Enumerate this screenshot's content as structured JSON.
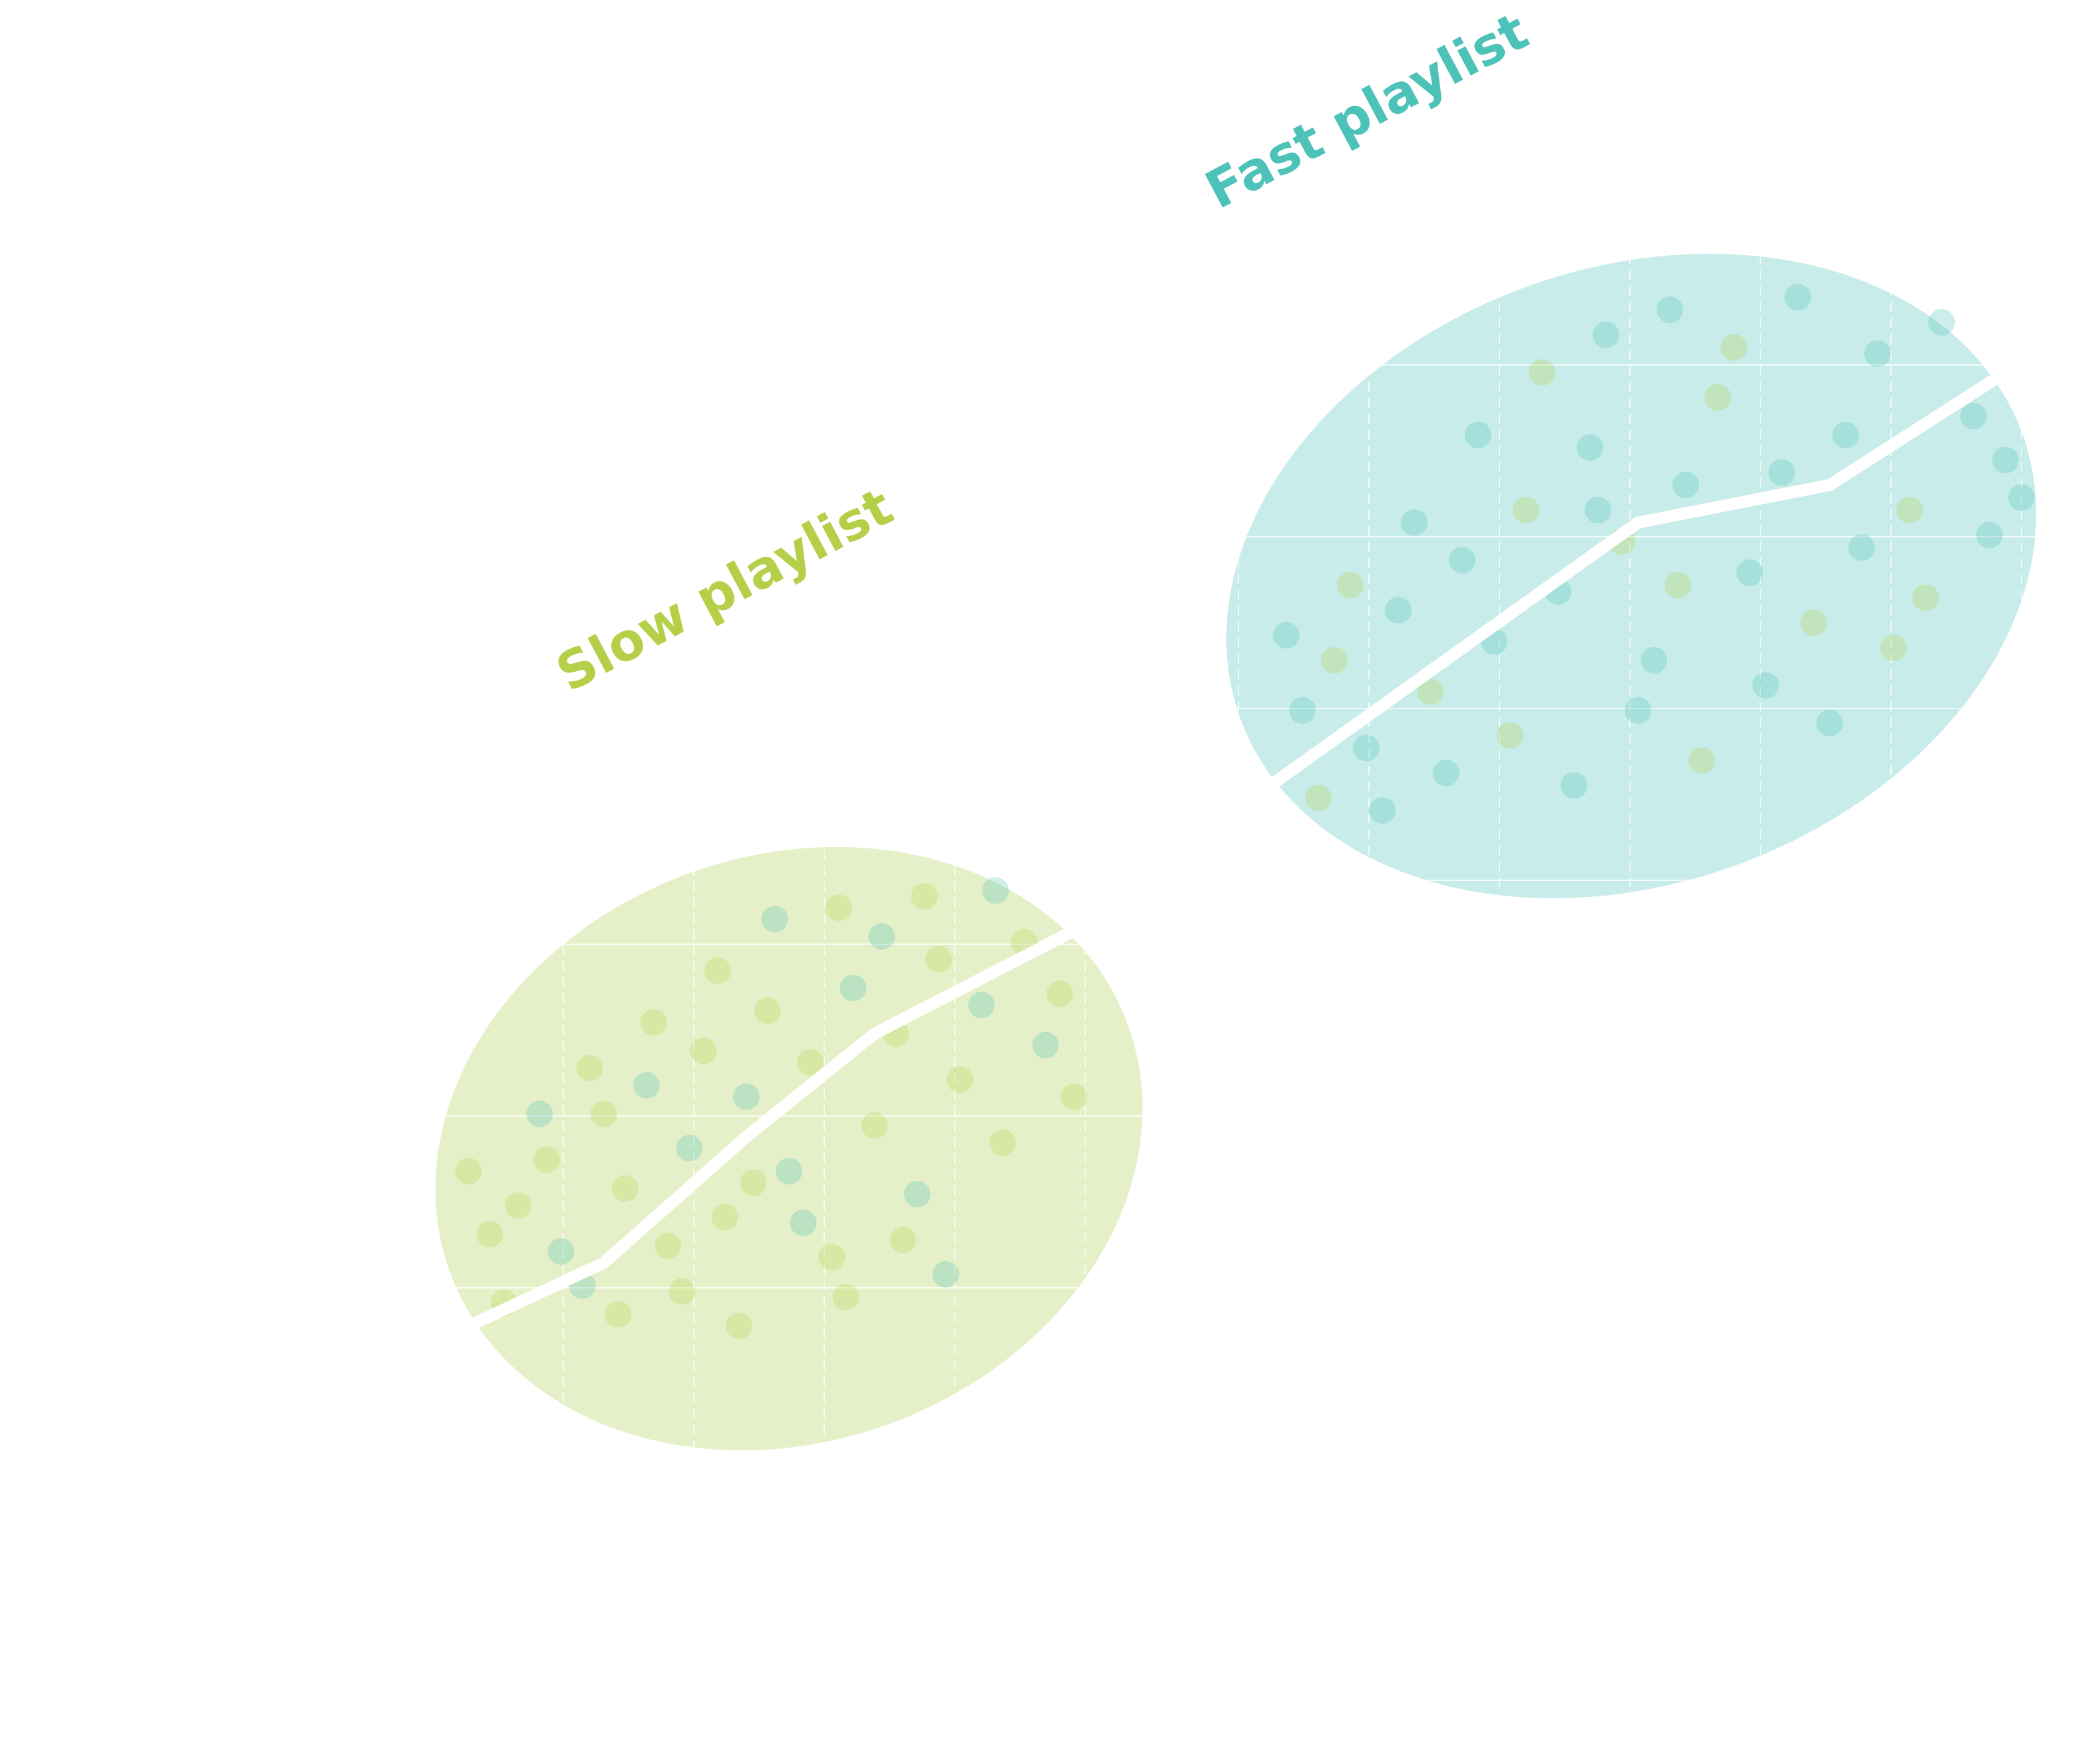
{
  "chart_data": {
    "type": "scatter",
    "title": "",
    "xlabel": "",
    "ylabel": "",
    "grid": true,
    "colors": {
      "slow": "#b5cf49",
      "fast": "#4cc2b8"
    },
    "groups": [
      {
        "name": "Slow playlist",
        "color_key": "slow",
        "trend": {
          "x": [
            0,
            0.24,
            0.44,
            0.62,
            0.9
          ],
          "y": [
            0.12,
            0.26,
            0.48,
            0.66,
            0.84
          ]
        },
        "points": [
          {
            "x": 0.08,
            "y": 0.31,
            "c": "slow"
          },
          {
            "x": 0.12,
            "y": 0.36,
            "c": "slow"
          },
          {
            "x": 0.16,
            "y": 0.44,
            "c": "slow"
          },
          {
            "x": 0.21,
            "y": 0.22,
            "c": "fast"
          },
          {
            "x": 0.24,
            "y": 0.52,
            "c": "slow"
          },
          {
            "x": 0.27,
            "y": 0.39,
            "c": "slow"
          },
          {
            "x": 0.3,
            "y": 0.57,
            "c": "fast"
          },
          {
            "x": 0.33,
            "y": 0.29,
            "c": "slow"
          },
          {
            "x": 0.36,
            "y": 0.46,
            "c": "fast"
          },
          {
            "x": 0.38,
            "y": 0.63,
            "c": "slow"
          },
          {
            "x": 0.41,
            "y": 0.34,
            "c": "slow"
          },
          {
            "x": 0.44,
            "y": 0.55,
            "c": "fast"
          },
          {
            "x": 0.47,
            "y": 0.7,
            "c": "slow"
          },
          {
            "x": 0.5,
            "y": 0.42,
            "c": "fast"
          },
          {
            "x": 0.53,
            "y": 0.61,
            "c": "slow"
          },
          {
            "x": 0.56,
            "y": 0.27,
            "c": "slow"
          },
          {
            "x": 0.59,
            "y": 0.74,
            "c": "fast"
          },
          {
            "x": 0.62,
            "y": 0.5,
            "c": "slow"
          },
          {
            "x": 0.65,
            "y": 0.66,
            "c": "slow"
          },
          {
            "x": 0.68,
            "y": 0.38,
            "c": "fast"
          },
          {
            "x": 0.71,
            "y": 0.79,
            "c": "slow"
          },
          {
            "x": 0.74,
            "y": 0.58,
            "c": "slow"
          },
          {
            "x": 0.77,
            "y": 0.71,
            "c": "fast"
          },
          {
            "x": 0.8,
            "y": 0.47,
            "c": "slow"
          },
          {
            "x": 0.83,
            "y": 0.82,
            "c": "slow"
          },
          {
            "x": 0.86,
            "y": 0.64,
            "c": "fast"
          },
          {
            "x": 0.1,
            "y": 0.19,
            "c": "slow"
          },
          {
            "x": 0.18,
            "y": 0.28,
            "c": "fast"
          },
          {
            "x": 0.26,
            "y": 0.17,
            "c": "slow"
          },
          {
            "x": 0.35,
            "y": 0.21,
            "c": "slow"
          },
          {
            "x": 0.43,
            "y": 0.15,
            "c": "slow"
          },
          {
            "x": 0.52,
            "y": 0.33,
            "c": "fast"
          },
          {
            "x": 0.58,
            "y": 0.2,
            "c": "slow"
          },
          {
            "x": 0.66,
            "y": 0.3,
            "c": "slow"
          },
          {
            "x": 0.72,
            "y": 0.24,
            "c": "fast"
          },
          {
            "x": 0.4,
            "y": 0.77,
            "c": "slow"
          },
          {
            "x": 0.48,
            "y": 0.86,
            "c": "fast"
          },
          {
            "x": 0.57,
            "y": 0.88,
            "c": "slow"
          },
          {
            "x": 0.69,
            "y": 0.9,
            "c": "slow"
          },
          {
            "x": 0.79,
            "y": 0.91,
            "c": "fast"
          },
          {
            "x": 0.22,
            "y": 0.6,
            "c": "slow"
          },
          {
            "x": 0.31,
            "y": 0.68,
            "c": "slow"
          },
          {
            "x": 0.15,
            "y": 0.52,
            "c": "fast"
          },
          {
            "x": 0.88,
            "y": 0.73,
            "c": "slow"
          },
          {
            "x": 0.9,
            "y": 0.55,
            "c": "slow"
          },
          {
            "x": 0.05,
            "y": 0.42,
            "c": "slow"
          },
          {
            "x": 0.45,
            "y": 0.4,
            "c": "slow"
          },
          {
            "x": 0.63,
            "y": 0.83,
            "c": "fast"
          }
        ]
      },
      {
        "name": "Fast playlist",
        "color_key": "fast",
        "trend": {
          "x": [
            0.04,
            0.5,
            0.74,
            0.96
          ],
          "y": [
            0.16,
            0.58,
            0.64,
            0.82
          ]
        },
        "points": [
          {
            "x": 0.08,
            "y": 0.28,
            "c": "fast"
          },
          {
            "x": 0.12,
            "y": 0.36,
            "c": "slow"
          },
          {
            "x": 0.16,
            "y": 0.22,
            "c": "fast"
          },
          {
            "x": 0.2,
            "y": 0.44,
            "c": "fast"
          },
          {
            "x": 0.24,
            "y": 0.31,
            "c": "slow"
          },
          {
            "x": 0.28,
            "y": 0.52,
            "c": "fast"
          },
          {
            "x": 0.32,
            "y": 0.39,
            "c": "fast"
          },
          {
            "x": 0.36,
            "y": 0.6,
            "c": "slow"
          },
          {
            "x": 0.4,
            "y": 0.47,
            "c": "fast"
          },
          {
            "x": 0.44,
            "y": 0.7,
            "c": "fast"
          },
          {
            "x": 0.48,
            "y": 0.55,
            "c": "slow"
          },
          {
            "x": 0.52,
            "y": 0.36,
            "c": "fast"
          },
          {
            "x": 0.56,
            "y": 0.64,
            "c": "fast"
          },
          {
            "x": 0.6,
            "y": 0.78,
            "c": "slow"
          },
          {
            "x": 0.64,
            "y": 0.5,
            "c": "fast"
          },
          {
            "x": 0.68,
            "y": 0.66,
            "c": "fast"
          },
          {
            "x": 0.72,
            "y": 0.42,
            "c": "slow"
          },
          {
            "x": 0.76,
            "y": 0.72,
            "c": "fast"
          },
          {
            "x": 0.8,
            "y": 0.85,
            "c": "fast"
          },
          {
            "x": 0.84,
            "y": 0.6,
            "c": "slow"
          },
          {
            "x": 0.88,
            "y": 0.9,
            "c": "fast"
          },
          {
            "x": 0.92,
            "y": 0.75,
            "c": "fast"
          },
          {
            "x": 0.96,
            "y": 0.68,
            "c": "fast"
          },
          {
            "x": 0.1,
            "y": 0.14,
            "c": "slow"
          },
          {
            "x": 0.18,
            "y": 0.12,
            "c": "fast"
          },
          {
            "x": 0.26,
            "y": 0.18,
            "c": "fast"
          },
          {
            "x": 0.34,
            "y": 0.24,
            "c": "slow"
          },
          {
            "x": 0.42,
            "y": 0.16,
            "c": "fast"
          },
          {
            "x": 0.5,
            "y": 0.28,
            "c": "fast"
          },
          {
            "x": 0.58,
            "y": 0.2,
            "c": "slow"
          },
          {
            "x": 0.66,
            "y": 0.32,
            "c": "fast"
          },
          {
            "x": 0.74,
            "y": 0.26,
            "c": "fast"
          },
          {
            "x": 0.82,
            "y": 0.38,
            "c": "slow"
          },
          {
            "x": 0.3,
            "y": 0.72,
            "c": "fast"
          },
          {
            "x": 0.38,
            "y": 0.82,
            "c": "slow"
          },
          {
            "x": 0.46,
            "y": 0.88,
            "c": "fast"
          },
          {
            "x": 0.54,
            "y": 0.92,
            "c": "fast"
          },
          {
            "x": 0.62,
            "y": 0.86,
            "c": "slow"
          },
          {
            "x": 0.7,
            "y": 0.94,
            "c": "fast"
          },
          {
            "x": 0.22,
            "y": 0.58,
            "c": "fast"
          },
          {
            "x": 0.14,
            "y": 0.48,
            "c": "slow"
          },
          {
            "x": 0.06,
            "y": 0.4,
            "c": "fast"
          },
          {
            "x": 0.78,
            "y": 0.54,
            "c": "fast"
          },
          {
            "x": 0.86,
            "y": 0.46,
            "c": "slow"
          },
          {
            "x": 0.94,
            "y": 0.56,
            "c": "fast"
          },
          {
            "x": 0.98,
            "y": 0.62,
            "c": "fast"
          },
          {
            "x": 0.45,
            "y": 0.6,
            "c": "fast"
          },
          {
            "x": 0.55,
            "y": 0.48,
            "c": "slow"
          }
        ]
      }
    ]
  }
}
